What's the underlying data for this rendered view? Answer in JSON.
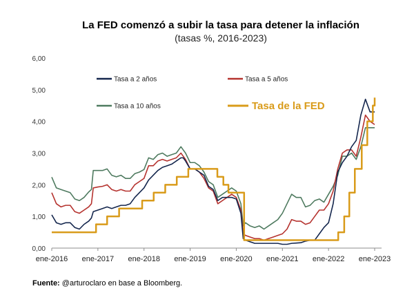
{
  "chart_data": {
    "type": "line",
    "title": "La FED comenzó a subir la tasa para detener la inflación",
    "subtitle": "(tasas %, 2016-2023)",
    "ylim": [
      0,
      6
    ],
    "yticks": [
      "0,00",
      "1,00",
      "2,00",
      "3,00",
      "4,00",
      "5,00",
      "6,00"
    ],
    "xlim": [
      2016.0,
      2023.0
    ],
    "xticks": [
      {
        "label": "ene-2016",
        "value": 2016
      },
      {
        "label": "ene-2017",
        "value": 2017
      },
      {
        "label": "ene-2018",
        "value": 2018
      },
      {
        "label": "ene-2019",
        "value": 2019
      },
      {
        "label": "ene-2020",
        "value": 2020
      },
      {
        "label": "ene-2021",
        "value": 2021
      },
      {
        "label": "ene-2022",
        "value": 2022
      },
      {
        "label": "ene-2023",
        "value": 2023
      }
    ],
    "series": [
      {
        "name": "Tasa a 10 años",
        "color": "#4e7a5f",
        "x": [
          2016.0,
          2016.1,
          2016.2,
          2016.3,
          2016.4,
          2016.5,
          2016.6,
          2016.7,
          2016.8,
          2016.86,
          2016.9,
          2017.0,
          2017.1,
          2017.2,
          2017.3,
          2017.4,
          2017.5,
          2017.6,
          2017.7,
          2017.8,
          2017.9,
          2018.0,
          2018.1,
          2018.2,
          2018.3,
          2018.4,
          2018.5,
          2018.6,
          2018.7,
          2018.8,
          2018.85,
          2018.9,
          2019.0,
          2019.1,
          2019.2,
          2019.3,
          2019.4,
          2019.5,
          2019.6,
          2019.7,
          2019.8,
          2019.9,
          2020.0,
          2020.1,
          2020.15,
          2020.2,
          2020.3,
          2020.4,
          2020.5,
          2020.6,
          2020.7,
          2020.8,
          2020.9,
          2021.0,
          2021.1,
          2021.2,
          2021.3,
          2021.4,
          2021.5,
          2021.6,
          2021.7,
          2021.8,
          2021.9,
          2022.0,
          2022.1,
          2022.2,
          2022.3,
          2022.4,
          2022.5,
          2022.6,
          2022.7,
          2022.8,
          2022.9,
          2023.0
        ],
        "y": [
          2.24,
          1.9,
          1.85,
          1.8,
          1.75,
          1.55,
          1.5,
          1.6,
          1.77,
          1.85,
          2.45,
          2.45,
          2.45,
          2.5,
          2.3,
          2.25,
          2.3,
          2.2,
          2.2,
          2.35,
          2.4,
          2.48,
          2.85,
          2.8,
          2.95,
          3.0,
          2.9,
          2.95,
          3.0,
          3.2,
          3.1,
          3.0,
          2.7,
          2.7,
          2.6,
          2.4,
          2.1,
          2.0,
          1.6,
          1.7,
          1.8,
          1.9,
          1.8,
          1.4,
          0.7,
          0.8,
          0.7,
          0.65,
          0.7,
          0.6,
          0.7,
          0.8,
          0.9,
          1.1,
          1.4,
          1.7,
          1.6,
          1.6,
          1.3,
          1.35,
          1.5,
          1.55,
          1.45,
          1.7,
          1.95,
          2.3,
          2.9,
          2.9,
          3.0,
          2.8,
          3.2,
          3.8,
          3.8,
          3.8
        ]
      },
      {
        "name": "Tasa a 5 años",
        "color": "#b5322e",
        "x": [
          2016.0,
          2016.1,
          2016.2,
          2016.3,
          2016.4,
          2016.5,
          2016.6,
          2016.7,
          2016.8,
          2016.86,
          2016.9,
          2017.0,
          2017.1,
          2017.2,
          2017.3,
          2017.4,
          2017.5,
          2017.6,
          2017.7,
          2017.8,
          2017.9,
          2018.0,
          2018.1,
          2018.2,
          2018.3,
          2018.4,
          2018.5,
          2018.6,
          2018.7,
          2018.8,
          2018.85,
          2018.9,
          2019.0,
          2019.1,
          2019.2,
          2019.3,
          2019.4,
          2019.5,
          2019.6,
          2019.7,
          2019.8,
          2019.9,
          2020.0,
          2020.1,
          2020.15,
          2020.2,
          2020.3,
          2020.4,
          2020.5,
          2020.6,
          2020.7,
          2020.8,
          2020.9,
          2021.0,
          2021.1,
          2021.2,
          2021.3,
          2021.4,
          2021.5,
          2021.6,
          2021.7,
          2021.8,
          2021.9,
          2022.0,
          2022.1,
          2022.2,
          2022.3,
          2022.4,
          2022.5,
          2022.6,
          2022.7,
          2022.8,
          2022.9,
          2023.0
        ],
        "y": [
          1.75,
          1.4,
          1.3,
          1.35,
          1.35,
          1.15,
          1.1,
          1.2,
          1.3,
          1.4,
          1.9,
          1.93,
          1.95,
          2.0,
          1.85,
          1.8,
          1.85,
          1.8,
          1.8,
          2.0,
          2.1,
          2.2,
          2.6,
          2.6,
          2.75,
          2.8,
          2.75,
          2.8,
          2.85,
          3.0,
          2.9,
          2.8,
          2.5,
          2.5,
          2.4,
          2.2,
          1.9,
          1.8,
          1.4,
          1.5,
          1.6,
          1.7,
          1.6,
          1.2,
          0.45,
          0.4,
          0.35,
          0.3,
          0.3,
          0.25,
          0.3,
          0.35,
          0.4,
          0.45,
          0.6,
          0.9,
          0.85,
          0.85,
          0.75,
          0.8,
          1.0,
          1.2,
          1.2,
          1.4,
          1.8,
          2.5,
          3.0,
          3.1,
          3.1,
          2.9,
          3.5,
          4.2,
          4.0,
          3.9
        ]
      },
      {
        "name": "Tasa a 2 años",
        "color": "#14264d",
        "x": [
          2016.0,
          2016.1,
          2016.2,
          2016.3,
          2016.4,
          2016.5,
          2016.6,
          2016.7,
          2016.8,
          2016.86,
          2016.9,
          2017.0,
          2017.1,
          2017.2,
          2017.3,
          2017.4,
          2017.5,
          2017.6,
          2017.7,
          2017.8,
          2017.9,
          2018.0,
          2018.1,
          2018.2,
          2018.3,
          2018.4,
          2018.5,
          2018.6,
          2018.7,
          2018.8,
          2018.85,
          2018.9,
          2019.0,
          2019.1,
          2019.2,
          2019.3,
          2019.4,
          2019.5,
          2019.6,
          2019.7,
          2019.8,
          2019.9,
          2020.0,
          2020.1,
          2020.15,
          2020.2,
          2020.3,
          2020.4,
          2020.5,
          2020.6,
          2020.7,
          2020.8,
          2020.9,
          2021.0,
          2021.1,
          2021.2,
          2021.3,
          2021.4,
          2021.5,
          2021.6,
          2021.7,
          2021.8,
          2021.9,
          2022.0,
          2022.1,
          2022.2,
          2022.3,
          2022.4,
          2022.5,
          2022.6,
          2022.7,
          2022.8,
          2022.9,
          2023.0
        ],
        "y": [
          1.05,
          0.8,
          0.75,
          0.8,
          0.8,
          0.65,
          0.6,
          0.75,
          0.85,
          0.95,
          1.15,
          1.2,
          1.25,
          1.3,
          1.25,
          1.3,
          1.35,
          1.35,
          1.4,
          1.6,
          1.75,
          1.9,
          2.15,
          2.3,
          2.45,
          2.55,
          2.6,
          2.65,
          2.75,
          2.85,
          2.85,
          2.75,
          2.5,
          2.5,
          2.4,
          2.3,
          1.95,
          1.85,
          1.5,
          1.6,
          1.6,
          1.6,
          1.55,
          1.1,
          0.3,
          0.25,
          0.2,
          0.15,
          0.15,
          0.15,
          0.15,
          0.15,
          0.15,
          0.12,
          0.12,
          0.15,
          0.16,
          0.17,
          0.22,
          0.25,
          0.25,
          0.45,
          0.65,
          0.8,
          1.4,
          2.4,
          2.7,
          2.9,
          3.2,
          3.4,
          4.2,
          4.7,
          4.3,
          4.3
        ]
      },
      {
        "name": "Tasa de la FED",
        "color": "#d99b1a",
        "step": true,
        "x": [
          2016.0,
          2016.96,
          2017.2,
          2017.46,
          2017.96,
          2018.21,
          2018.46,
          2018.71,
          2018.96,
          2019.59,
          2019.72,
          2019.83,
          2020.17,
          2022.21,
          2022.34,
          2022.45,
          2022.57,
          2022.72,
          2022.84,
          2022.96,
          2023.0
        ],
        "y": [
          0.5,
          0.75,
          1.0,
          1.25,
          1.5,
          1.75,
          2.0,
          2.25,
          2.5,
          2.25,
          2.0,
          1.75,
          0.25,
          0.5,
          1.0,
          1.75,
          2.5,
          3.25,
          4.0,
          4.5,
          4.75
        ]
      }
    ],
    "legend": [
      {
        "name": "Tasa a 2 años",
        "color": "#14264d",
        "style": "normal"
      },
      {
        "name": "Tasa a 5 años",
        "color": "#b5322e",
        "style": "normal"
      },
      {
        "name": "Tasa a 10 años",
        "color": "#4e7a5f",
        "style": "normal"
      },
      {
        "name": "Tasa de la FED",
        "color": "#d99b1a",
        "style": "emphasis"
      }
    ]
  },
  "source": {
    "label": "Fuente:",
    "text": " @arturoclaro en base a Bloomberg."
  }
}
